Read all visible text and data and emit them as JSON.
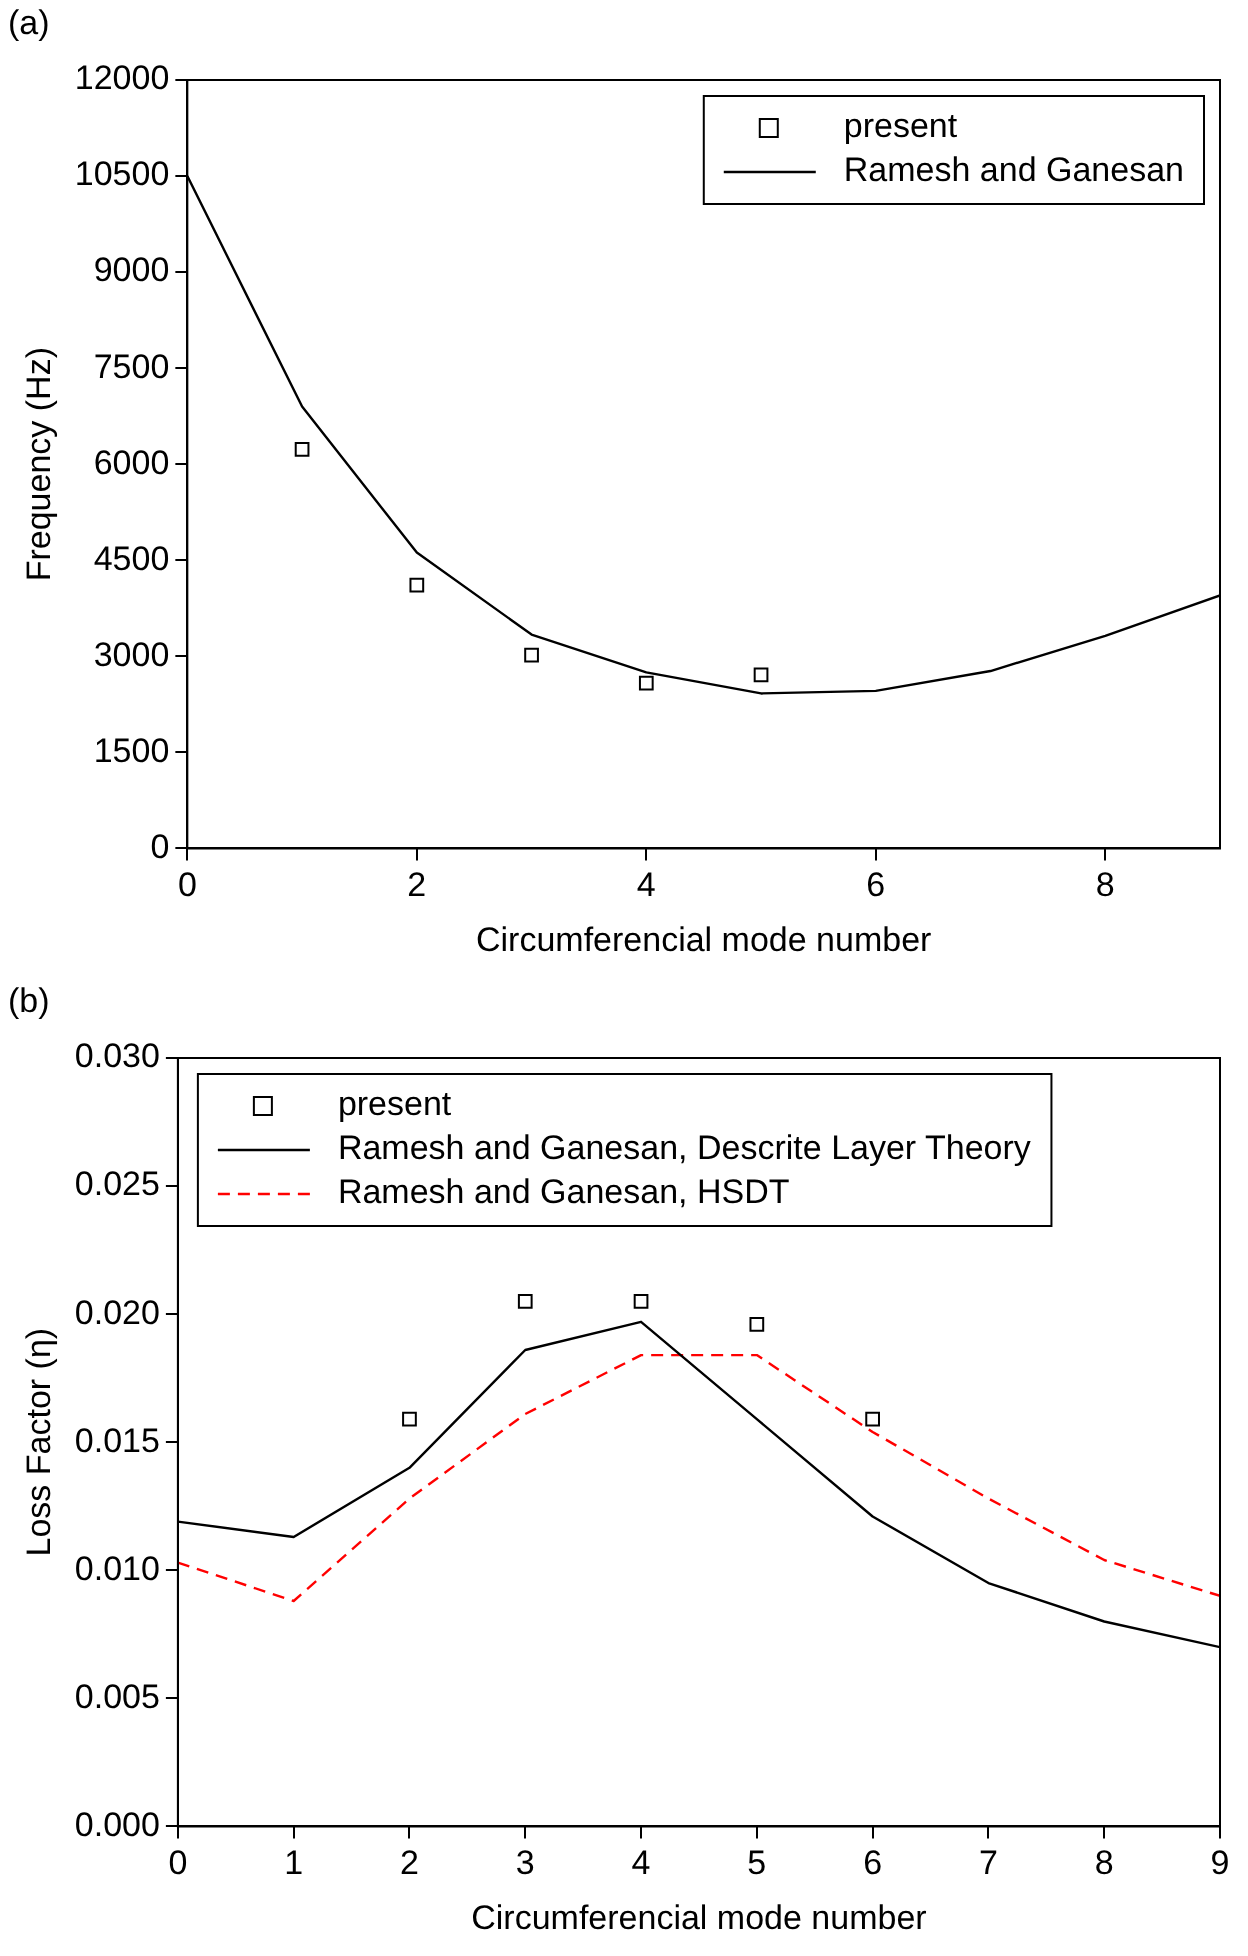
{
  "chart_data": [
    {
      "type": "line",
      "annotations": [
        "(a)"
      ],
      "xlabel": "Circumferencial mode number",
      "ylabel": "Frequency (Hz)",
      "xlim": [
        0,
        9
      ],
      "xticks": [
        0,
        2,
        4,
        6,
        8
      ],
      "ylim": [
        0,
        12000
      ],
      "yticks": [
        0,
        1500,
        3000,
        4500,
        6000,
        7500,
        9000,
        10500,
        12000
      ],
      "grid": false,
      "legend": "top right",
      "series": [
        {
          "name": "present",
          "type": "scatter",
          "marker": "square",
          "color": "#000000",
          "x": [
            1,
            2,
            3,
            4,
            5
          ],
          "values": [
            6230,
            4110,
            3020,
            2580,
            2710
          ]
        },
        {
          "name": "Ramesh and Ganesan",
          "type": "line",
          "line_style": "solid",
          "color": "#000000",
          "x": [
            0,
            1,
            2,
            3,
            4,
            5,
            6,
            7,
            8,
            9
          ],
          "values": [
            10500,
            6900,
            4620,
            3340,
            2750,
            2420,
            2460,
            2770,
            3320,
            3950
          ]
        }
      ]
    },
    {
      "type": "line",
      "annotations": [
        "(b)"
      ],
      "xlabel": "Circumferencial mode number",
      "ylabel": "Loss Factor (η)",
      "xlim": [
        0,
        9
      ],
      "xticks": [
        0,
        1,
        2,
        3,
        4,
        5,
        6,
        7,
        8,
        9
      ],
      "ylim": [
        0,
        0.03
      ],
      "yticks": [
        {
          "value": 0,
          "label": "0.000"
        },
        {
          "value": 0.005,
          "label": "0.005"
        },
        {
          "value": 0.01,
          "label": "0.010"
        },
        {
          "value": 0.015,
          "label": "0.015"
        },
        {
          "value": 0.02,
          "label": "0.020"
        },
        {
          "value": 0.025,
          "label": "0.025"
        },
        {
          "value": 0.03,
          "label": "0.030"
        }
      ],
      "grid": false,
      "legend": "top left",
      "series": [
        {
          "name": "present",
          "type": "scatter",
          "marker": "square",
          "color": "#000000",
          "x": [
            2,
            3,
            4,
            5,
            6
          ],
          "values": [
            0.0159,
            0.0205,
            0.0205,
            0.0196,
            0.0159
          ]
        },
        {
          "name": "Ramesh and Ganesan, Descrite Layer Theory",
          "type": "line",
          "line_style": "solid",
          "color": "#000000",
          "x": [
            0,
            1,
            2,
            3,
            4,
            5,
            6,
            7,
            8,
            9
          ],
          "values": [
            0.0119,
            0.0113,
            0.014,
            0.0186,
            0.0197,
            0.0159,
            0.0121,
            0.0095,
            0.008,
            0.007
          ]
        },
        {
          "name": "Ramesh and Ganesan, HSDT",
          "type": "line",
          "line_style": "dashed",
          "color": "#ff0000",
          "x": [
            0,
            1,
            2,
            3,
            4,
            5,
            6,
            7,
            8,
            9
          ],
          "values": [
            0.0103,
            0.0088,
            0.0128,
            0.0161,
            0.0184,
            0.0184,
            0.0154,
            0.0128,
            0.0104,
            0.009
          ]
        }
      ]
    }
  ]
}
